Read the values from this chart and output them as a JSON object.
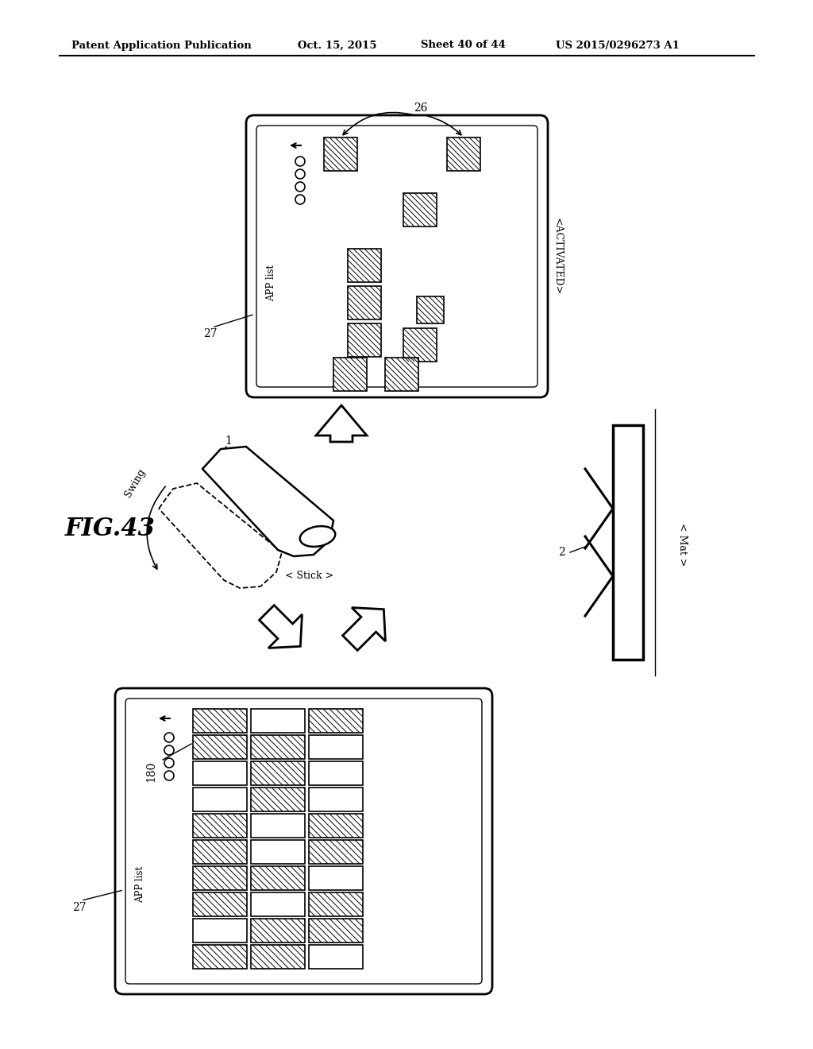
{
  "bg_color": "#ffffff",
  "header_text": "Patent Application Publication",
  "header_date": "Oct. 15, 2015",
  "header_sheet": "Sheet 40 of 44",
  "header_patent": "US 2015/0296273 A1",
  "fig_label": "FIG.43",
  "activated_label": "<ACTIVATED>",
  "stick_label": "< Stick >",
  "mat_label": "< Mat >",
  "swing_label": "Swing",
  "label_26": "26",
  "label_27": "27",
  "label_1": "1",
  "label_2": "2",
  "label_180": "180",
  "app_list": "APP list"
}
